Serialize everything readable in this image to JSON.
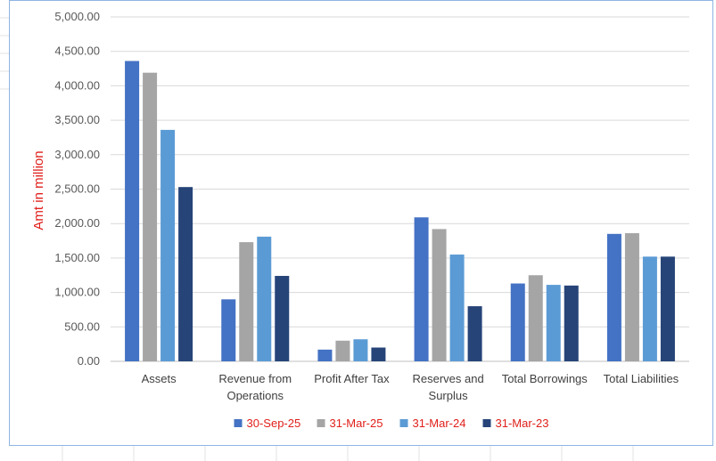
{
  "chart_data": {
    "type": "bar",
    "title": "",
    "xlabel": "",
    "ylabel": "Amt in million",
    "ylim": [
      0,
      5000
    ],
    "y_ticks": [
      "0.00",
      "500.00",
      "1,000.00",
      "1,500.00",
      "2,000.00",
      "2,500.00",
      "3,000.00",
      "3,500.00",
      "4,000.00",
      "4,500.00",
      "5,000.00"
    ],
    "grid": true,
    "legend_position": "bottom",
    "categories": [
      [
        "Assets"
      ],
      [
        "Revenue from",
        "Operations"
      ],
      [
        "Profit After Tax"
      ],
      [
        "Reserves and",
        "Surplus"
      ],
      [
        "Total Borrowings"
      ],
      [
        "Total Liabilities"
      ]
    ],
    "series": [
      {
        "name": "30-Sep-25",
        "color": "#4472c4",
        "values": [
          4360,
          900,
          170,
          2090,
          1130,
          1850
        ]
      },
      {
        "name": "31-Mar-25",
        "color": "#a5a5a5",
        "values": [
          4190,
          1730,
          300,
          1920,
          1250,
          1860
        ]
      },
      {
        "name": "31-Mar-24",
        "color": "#5b9bd5",
        "values": [
          3360,
          1810,
          320,
          1550,
          1110,
          1520
        ]
      },
      {
        "name": "31-Mar-23",
        "color": "#264478",
        "values": [
          2530,
          1240,
          200,
          800,
          1100,
          1520
        ]
      }
    ],
    "colors": {
      "ylabel": "#e0201b",
      "legend_text": "#e0201b",
      "tick_text": "#595959",
      "gridline": "#d9d9d9"
    }
  }
}
